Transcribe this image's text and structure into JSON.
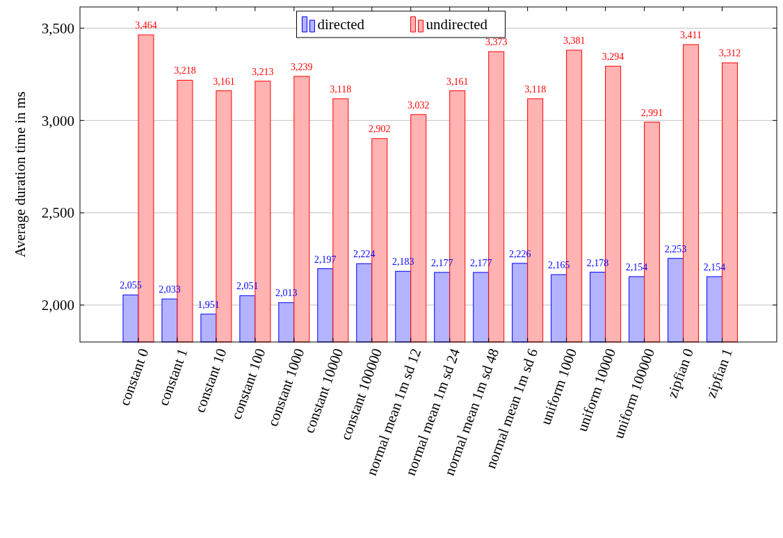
{
  "chart_data": {
    "type": "bar",
    "ylabel": "Average duration time in ms",
    "categories": [
      "constant 0",
      "constant 1",
      "constant 10",
      "constant 100",
      "constant 1000",
      "constant 10000",
      "constant 100000",
      "normal mean 1m sd 12",
      "normal mean 1m sd 24",
      "normal mean 1m sd 48",
      "normal mean 1m sd 6",
      "uniform 1000",
      "uniform 10000",
      "uniform 100000",
      "zipfian 0",
      "zipfian 1"
    ],
    "series": [
      {
        "name": "directed",
        "color": "#b3b3ff",
        "values": [
          2055,
          2033,
          1951,
          2051,
          2013,
          2197,
          2224,
          2183,
          2177,
          2177,
          2226,
          2165,
          2178,
          2154,
          2253,
          2154
        ],
        "value_labels": [
          "2,055",
          "2,033",
          "1,951",
          "2,051",
          "2,013",
          "2,197",
          "2,224",
          "2,183",
          "2,177",
          "2,177",
          "2,226",
          "2,165",
          "2,178",
          "2,154",
          "2,253",
          "2,154"
        ]
      },
      {
        "name": "undirected",
        "color": "#ffb3b3",
        "values": [
          3464,
          3218,
          3161,
          3213,
          3239,
          3118,
          2902,
          3032,
          3161,
          3373,
          3118,
          3381,
          3294,
          2991,
          3411,
          3312
        ],
        "value_labels": [
          "3,464",
          "3,218",
          "3,161",
          "3,213",
          "3,239",
          "3,118",
          "2,902",
          "3,032",
          "3,161",
          "3,373",
          "3,118",
          "3,381",
          "3,294",
          "2,991",
          "3,411",
          "3,312"
        ]
      }
    ],
    "ylim": [
      1800,
      3615
    ],
    "yticks": [
      {
        "value": 2000,
        "label": "2,000"
      },
      {
        "value": 2500,
        "label": "2,500"
      },
      {
        "value": 3000,
        "label": "3,000"
      },
      {
        "value": 3500,
        "label": "3,500"
      }
    ],
    "grid": "y",
    "legend": "top"
  }
}
